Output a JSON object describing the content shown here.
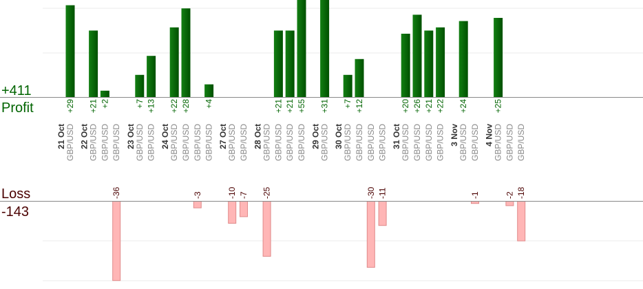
{
  "colors": {
    "profit_text": "#006400",
    "loss_text": "#4a0000",
    "profit_bar_light": "#137f13",
    "profit_bar_dark": "#005000",
    "loss_bar_fill": "#ffb6b6",
    "loss_bar_stroke": "#e08a8a",
    "axis": "#888888",
    "grid": "#ebebeb",
    "date_text": "#333333",
    "pair_text": "#888888"
  },
  "chart_data": {
    "type": "bar",
    "profit": {
      "label": "Profit",
      "total": "+411"
    },
    "loss": {
      "label": "Loss",
      "total": "-143"
    },
    "groups": [
      {
        "date": "21 Oct",
        "trades": [
          {
            "pair": "GBP/USD",
            "value": 29
          }
        ]
      },
      {
        "date": "22 Oct",
        "trades": [
          {
            "pair": "GBP/USD",
            "value": 21
          },
          {
            "pair": "GBP/USD",
            "value": 2
          },
          {
            "pair": "GBP/USD",
            "value": -36
          }
        ]
      },
      {
        "date": "23 Oct",
        "trades": [
          {
            "pair": "GBP/USD",
            "value": 7
          },
          {
            "pair": "GBP/USD",
            "value": 13
          }
        ]
      },
      {
        "date": "24 Oct",
        "trades": [
          {
            "pair": "GBP/USD",
            "value": 22
          },
          {
            "pair": "GBP/USD",
            "value": 28
          },
          {
            "pair": "GBP/USD",
            "value": -3
          },
          {
            "pair": "GBP/USD",
            "value": 4
          }
        ]
      },
      {
        "date": "27 Oct",
        "trades": [
          {
            "pair": "GBP/USD",
            "value": -10
          },
          {
            "pair": "GBP/USD",
            "value": -7
          }
        ]
      },
      {
        "date": "28 Oct",
        "trades": [
          {
            "pair": "GBP/USD",
            "value": -25
          },
          {
            "pair": "GBP/USD",
            "value": 21
          },
          {
            "pair": "GBP/USD",
            "value": 21
          },
          {
            "pair": "GBP/USD",
            "value": 55
          }
        ]
      },
      {
        "date": "29 Oct",
        "trades": [
          {
            "pair": "GBP/USD",
            "value": 31
          }
        ]
      },
      {
        "date": "30 Oct",
        "trades": [
          {
            "pair": "GBP/USD",
            "value": 7
          },
          {
            "pair": "GBP/USD",
            "value": 12
          },
          {
            "pair": "GBP/USD",
            "value": -30
          },
          {
            "pair": "GBP/USD",
            "value": -11
          }
        ]
      },
      {
        "date": "31 Oct",
        "trades": [
          {
            "pair": "GBP/USD",
            "value": 20
          },
          {
            "pair": "GBP/USD",
            "value": 26
          },
          {
            "pair": "GBP/USD",
            "value": 21
          },
          {
            "pair": "GBP/USD",
            "value": 22
          }
        ]
      },
      {
        "date": "3 Nov",
        "trades": [
          {
            "pair": "GBP/USD",
            "value": 24
          },
          {
            "pair": "GBP/USD",
            "value": -1
          }
        ]
      },
      {
        "date": "4 Nov",
        "trades": [
          {
            "pair": "GBP/USD",
            "value": 25
          },
          {
            "pair": "GBP/USD",
            "value": -2
          },
          {
            "pair": "GBP/USD",
            "value": -18
          }
        ]
      }
    ]
  }
}
